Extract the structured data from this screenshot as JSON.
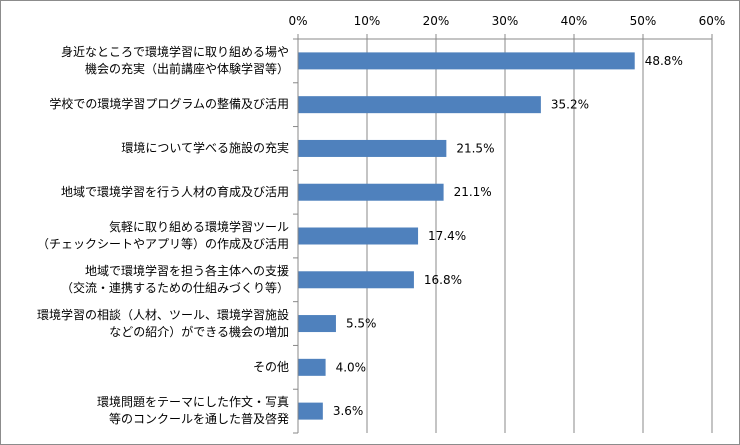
{
  "chart_data": {
    "type": "bar",
    "orientation": "horizontal",
    "categories": [
      "身近なところで環境学習に取り組める場や\n機会の充実（出前講座や体験学習等）",
      "学校での環境学習プログラムの整備及び活用",
      "環境について学べる施設の充実",
      "地域で環境学習を行う人材の育成及び活用",
      "気軽に取り組める環境学習ツール\n（チェックシートやアプリ等）の作成及び活用",
      "地域で環境学習を担う各主体への支援\n（交流・連携するための仕組みづくり等）",
      "環境学習の相談（人材、ツール、環境学習施設\nなどの紹介）ができる機会の増加",
      "その他",
      "環境問題をテーマにした作文・写真\n等のコンクールを通した普及啓発"
    ],
    "values": [
      48.8,
      35.2,
      21.5,
      21.1,
      17.4,
      16.8,
      5.5,
      4.0,
      3.6
    ],
    "value_labels": [
      "48.8%",
      "35.2%",
      "21.5%",
      "21.1%",
      "17.4%",
      "16.8%",
      "5.5%",
      "4.0%",
      "3.6%"
    ],
    "xlim": [
      0,
      60
    ],
    "xticks": [
      0,
      10,
      20,
      30,
      40,
      50,
      60
    ],
    "xtick_labels": [
      "0%",
      "10%",
      "20%",
      "30%",
      "40%",
      "50%",
      "60%"
    ],
    "axis_position": "top",
    "grid": true,
    "bar_color": "#4f81bd",
    "grid_color": "#888888"
  }
}
